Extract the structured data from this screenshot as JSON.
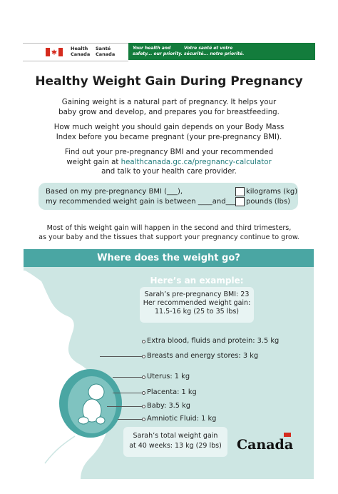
{
  "header": {
    "dept_en_line1": "Health",
    "dept_en_line2": "Canada",
    "dept_fr_line1": "Santé",
    "dept_fr_line2": "Canada",
    "slogan_en_line1": "Your health and",
    "slogan_en_line2": "safety... our priority.",
    "slogan_fr_line1": "Votre santé et votre",
    "slogan_fr_line2": "sécurité... notre priorité."
  },
  "title": "Healthy Weight Gain During Pregnancy",
  "intro": {
    "p1_line1": "Gaining weight is a natural part of pregnancy. It helps your",
    "p1_line2": "baby grow and develop, and prepares you for breastfeeding.",
    "p2_line1": "How much weight you should gain depends on your Body Mass",
    "p2_line2": "Index before you became pregnant (your pre-pregnancy BMI).",
    "p3_line1": "Find out your pre-pregnancy BMI and your recommended",
    "p3_line2_prefix": "weight gain at ",
    "p3_link": "healthcanada.gc.ca/pregnancy-calculator",
    "p3_line3": "and talk to your health care provider."
  },
  "bmi_form": {
    "line1": "Based on my pre-pregnancy BMI (___),",
    "line2": "my recommended weight gain is between ____and____",
    "unit_kg": "kilograms (kg)",
    "unit_lbs": "pounds (lbs)"
  },
  "note": {
    "line1": "Most of this weight gain will happen in the second and third trimesters,",
    "line2": "as your baby and the tissues that support your pregnancy continue to grow."
  },
  "panel": {
    "title": "Where does the weight go?",
    "example_title": "Here’s an example:",
    "sarah_line1": "Sarah’s pre-pregnancy BMI: 23",
    "sarah_line2": "Her recommended weight gain:",
    "sarah_line3": "11.5-16 kg (25 to 35 lbs)",
    "items": {
      "blood": "Extra blood, fluids and protein: 3.5 kg",
      "breasts": "Breasts and energy stores: 3 kg",
      "uterus": "Uterus: 1 kg",
      "placenta": "Placenta: 1 kg",
      "baby": "Baby: 3.5 kg",
      "amniotic": "Amniotic Fluid: 1 kg"
    },
    "total_line1": "Sarah’s total weight gain",
    "total_line2": "at 40 weeks: 13 kg (29 lbs)"
  },
  "wordmark": "Canada",
  "colors": {
    "header_green": "#137c3c",
    "teal_band": "#4aa6a3",
    "panel_bg": "#cde6e3",
    "flag_red": "#d52b1e",
    "link": "#1f7a7a"
  }
}
